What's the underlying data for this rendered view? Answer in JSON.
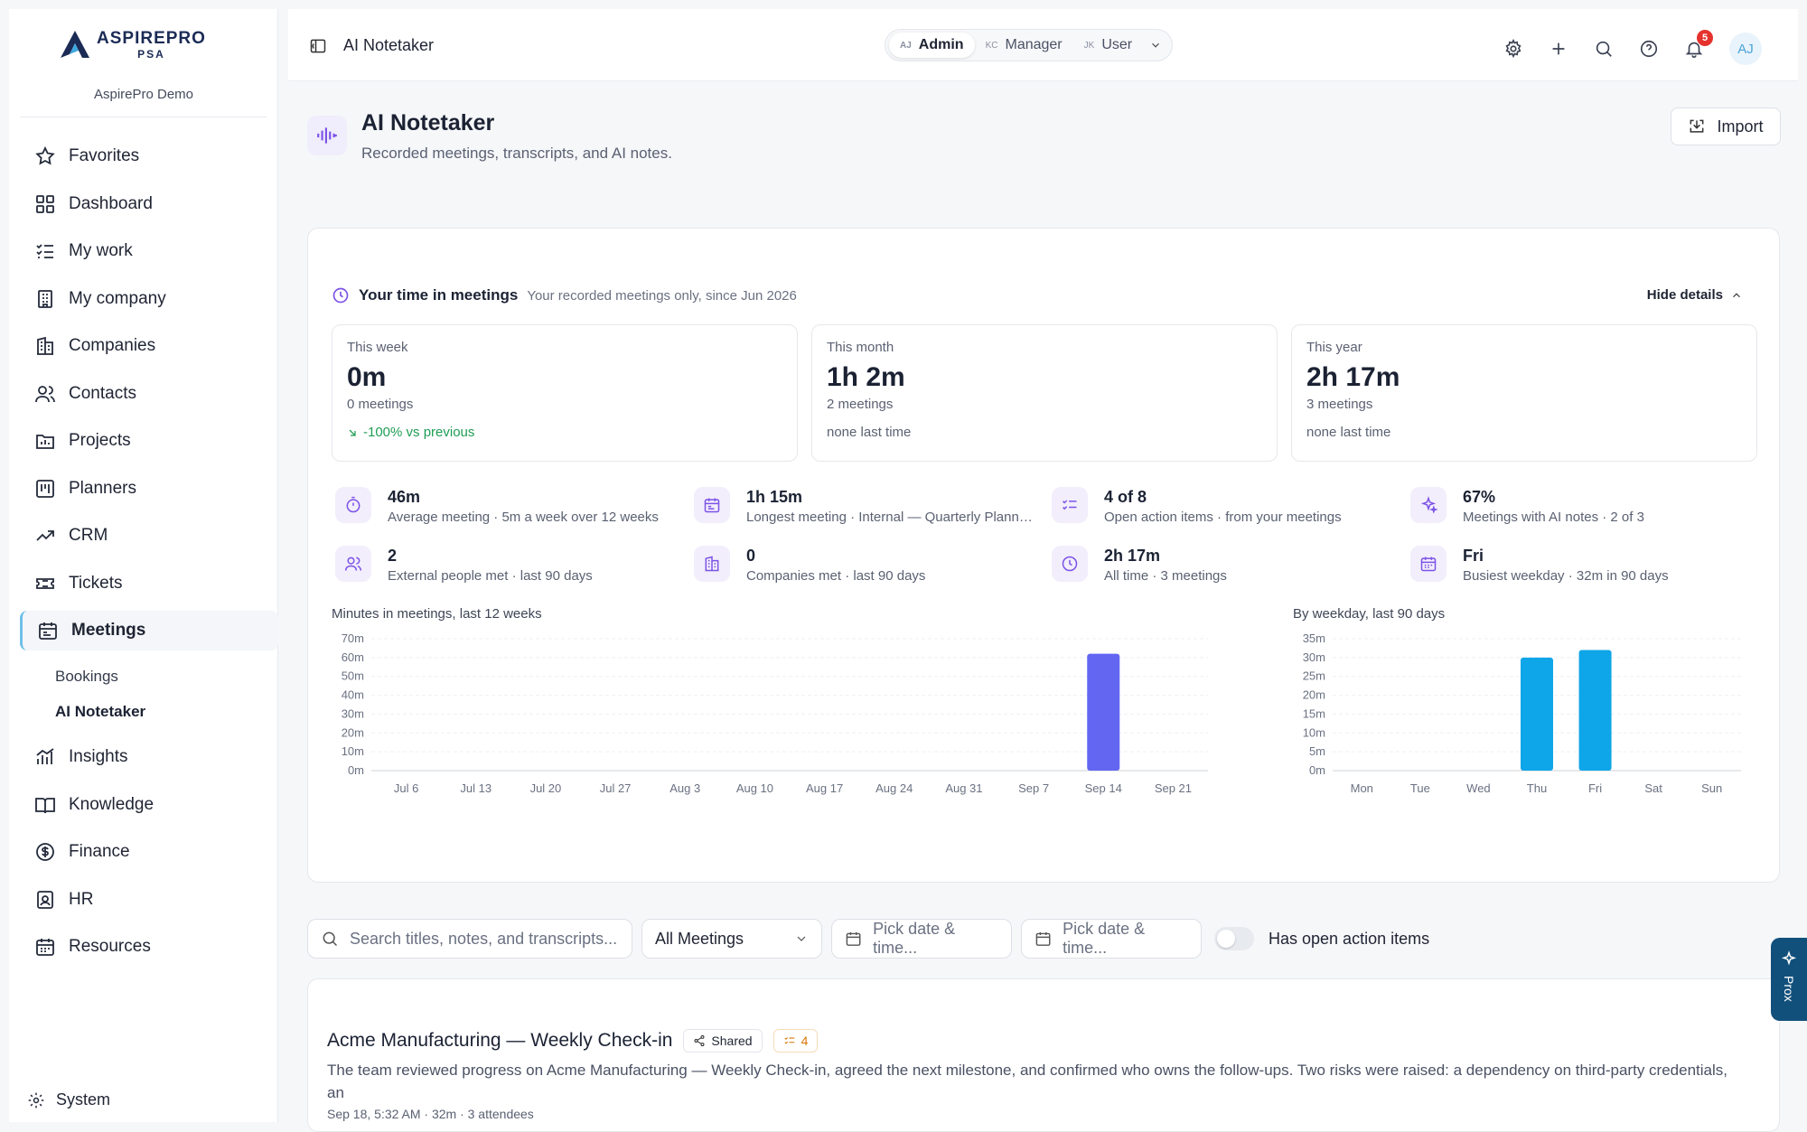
{
  "brand": {
    "name": "ASPIREPRO",
    "tagline": "PSA",
    "org": "AspirePro Demo"
  },
  "sidebar": {
    "items": [
      {
        "label": "Favorites",
        "icon": "star-icon"
      },
      {
        "label": "Dashboard",
        "icon": "dashboard-icon"
      },
      {
        "label": "My work",
        "icon": "checklist-icon"
      },
      {
        "label": "My company",
        "icon": "building-icon"
      },
      {
        "label": "Companies",
        "icon": "companies-icon"
      },
      {
        "label": "Contacts",
        "icon": "users-icon"
      },
      {
        "label": "Projects",
        "icon": "folder-icon"
      },
      {
        "label": "Planners",
        "icon": "kanban-icon"
      },
      {
        "label": "CRM",
        "icon": "trend-icon"
      },
      {
        "label": "Tickets",
        "icon": "ticket-icon"
      },
      {
        "label": "Meetings",
        "icon": "calendar-icon"
      },
      {
        "label": "Insights",
        "icon": "chart-icon"
      },
      {
        "label": "Knowledge",
        "icon": "book-icon"
      },
      {
        "label": "Finance",
        "icon": "dollar-icon"
      },
      {
        "label": "HR",
        "icon": "id-badge-icon"
      },
      {
        "label": "Resources",
        "icon": "calendar-grid-icon"
      }
    ],
    "sub_items": [
      "Bookings",
      "AI Notetaker"
    ],
    "system": "System"
  },
  "header": {
    "title": "AI Notetaker",
    "roles": [
      {
        "abbr": "AJ",
        "label": "Admin"
      },
      {
        "abbr": "KC",
        "label": "Manager"
      },
      {
        "abbr": "JK",
        "label": "User"
      }
    ],
    "notifications": "5",
    "avatar": "AJ"
  },
  "page": {
    "title": "AI Notetaker",
    "subtitle": "Recorded meetings, transcripts, and AI notes.",
    "import_label": "Import"
  },
  "time_in_meetings": {
    "title": "Your time in meetings",
    "subtitle": "Your recorded meetings only, since Jun 2026",
    "hide_label": "Hide details",
    "cards": [
      {
        "label": "This week",
        "value": "0m",
        "meetings": "0 meetings",
        "delta": "-100% vs previous"
      },
      {
        "label": "This month",
        "value": "1h 2m",
        "meetings": "2 meetings",
        "delta": "none last time"
      },
      {
        "label": "This year",
        "value": "2h 17m",
        "meetings": "3 meetings",
        "delta": "none last time"
      }
    ],
    "metrics": [
      {
        "value": "46m",
        "desc": "Average meeting · 5m a week over 12 weeks",
        "icon": "timer-icon"
      },
      {
        "value": "1h 15m",
        "desc": "Longest meeting · Internal — Quarterly Planning",
        "icon": "calendar-icon"
      },
      {
        "value": "4 of 8",
        "desc": "Open action items · from your meetings",
        "icon": "list-check-icon"
      },
      {
        "value": "67%",
        "desc": "Meetings with AI notes · 2 of 3",
        "icon": "sparkle-icon"
      },
      {
        "value": "2",
        "desc": "External people met · last 90 days",
        "icon": "users-icon"
      },
      {
        "value": "0",
        "desc": "Companies met · last 90 days",
        "icon": "building-icon"
      },
      {
        "value": "2h 17m",
        "desc": "All time · 3 meetings",
        "icon": "clock-icon"
      },
      {
        "value": "Fri",
        "desc": "Busiest weekday · 32m in 90 days",
        "icon": "calendar-grid-icon"
      }
    ]
  },
  "chart_data": [
    {
      "type": "bar",
      "title": "Minutes in meetings, last 12 weeks",
      "categories": [
        "Jul 6",
        "Jul 13",
        "Jul 20",
        "Jul 27",
        "Aug 3",
        "Aug 10",
        "Aug 17",
        "Aug 24",
        "Aug 31",
        "Sep 7",
        "Sep 14",
        "Sep 21"
      ],
      "values": [
        0,
        0,
        0,
        0,
        0,
        0,
        0,
        0,
        0,
        0,
        62,
        0
      ],
      "yticks": [
        "0m",
        "10m",
        "20m",
        "30m",
        "40m",
        "50m",
        "60m",
        "70m"
      ],
      "ylim": [
        0,
        70
      ],
      "color": "#6366f1",
      "grid": true
    },
    {
      "type": "bar",
      "title": "By weekday, last 90 days",
      "categories": [
        "Mon",
        "Tue",
        "Wed",
        "Thu",
        "Fri",
        "Sat",
        "Sun"
      ],
      "values": [
        0,
        0,
        0,
        30,
        32,
        0,
        0
      ],
      "yticks": [
        "0m",
        "5m",
        "10m",
        "15m",
        "20m",
        "25m",
        "30m",
        "35m"
      ],
      "ylim": [
        0,
        35
      ],
      "color": "#0ea5e9",
      "grid": true
    }
  ],
  "filters": {
    "search_placeholder": "Search titles, notes, and transcripts...",
    "type": "All Meetings",
    "date_from": "Pick date & time...",
    "date_to": "Pick date & time...",
    "open_items_label": "Has open action items"
  },
  "meetings": [
    {
      "title": "Acme Manufacturing — Weekly Check-in",
      "shared": "Shared",
      "actions": "4",
      "summary": "The team reviewed progress on Acme Manufacturing — Weekly Check-in, agreed the next milestone, and confirmed who owns the follow-ups. Two risks were raised: a dependency on third-party credentials, an",
      "meta": "Sep 18, 5:32 AM · 32m · 3 attendees"
    }
  ],
  "prox": {
    "label": "Prox"
  }
}
